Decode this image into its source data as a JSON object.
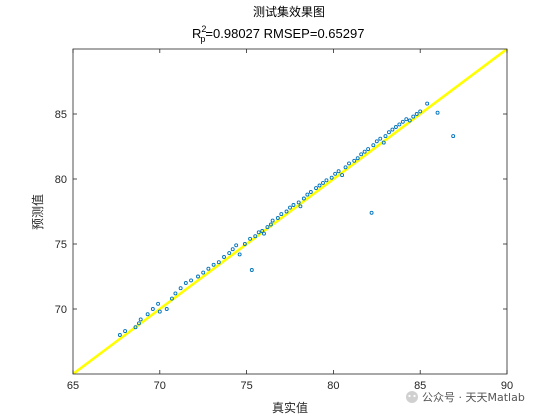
{
  "chart_data": {
    "type": "scatter",
    "title": "测试集效果图",
    "subtitle": {
      "r": "R",
      "sup": "2",
      "sub": "p",
      "rest": "=0.98027  RMSEP=0.65297"
    },
    "xlabel": "真实值",
    "ylabel": "预测值",
    "xlim": [
      65,
      90
    ],
    "ylim": [
      65,
      90
    ],
    "xticks": [
      65,
      70,
      75,
      80,
      85,
      90
    ],
    "yticks": [
      70,
      75,
      80,
      85
    ],
    "grid": false,
    "marker_color": "#0072BD",
    "fit_line": {
      "x": [
        65,
        90
      ],
      "y": [
        65,
        90
      ],
      "color": "#FFFF00"
    },
    "points": [
      [
        67.7,
        68.0
      ],
      [
        68.0,
        68.3
      ],
      [
        68.6,
        68.6
      ],
      [
        68.8,
        68.9
      ],
      [
        68.9,
        69.2
      ],
      [
        69.3,
        69.6
      ],
      [
        69.6,
        70.0
      ],
      [
        69.9,
        70.4
      ],
      [
        70.0,
        69.8
      ],
      [
        70.4,
        70.0
      ],
      [
        70.7,
        70.8
      ],
      [
        70.9,
        71.2
      ],
      [
        71.2,
        71.6
      ],
      [
        71.5,
        72.0
      ],
      [
        71.8,
        72.2
      ],
      [
        72.2,
        72.5
      ],
      [
        72.5,
        72.8
      ],
      [
        72.8,
        73.1
      ],
      [
        73.1,
        73.4
      ],
      [
        73.4,
        73.6
      ],
      [
        73.7,
        74.0
      ],
      [
        74.0,
        74.3
      ],
      [
        74.2,
        74.6
      ],
      [
        74.4,
        74.9
      ],
      [
        74.6,
        74.2
      ],
      [
        74.9,
        75.0
      ],
      [
        75.2,
        75.4
      ],
      [
        75.3,
        73.0
      ],
      [
        75.5,
        75.6
      ],
      [
        75.7,
        75.9
      ],
      [
        75.9,
        76.0
      ],
      [
        76.0,
        75.8
      ],
      [
        76.2,
        76.3
      ],
      [
        76.4,
        76.5
      ],
      [
        76.5,
        76.8
      ],
      [
        76.8,
        77.0
      ],
      [
        77.0,
        77.3
      ],
      [
        77.3,
        77.5
      ],
      [
        77.5,
        77.8
      ],
      [
        77.7,
        78.0
      ],
      [
        78.0,
        78.2
      ],
      [
        78.1,
        77.9
      ],
      [
        78.3,
        78.5
      ],
      [
        78.5,
        78.8
      ],
      [
        78.7,
        79.0
      ],
      [
        79.0,
        79.3
      ],
      [
        79.2,
        79.5
      ],
      [
        79.4,
        79.7
      ],
      [
        79.6,
        79.9
      ],
      [
        79.9,
        80.1
      ],
      [
        80.1,
        80.4
      ],
      [
        80.3,
        80.6
      ],
      [
        80.5,
        80.3
      ],
      [
        80.7,
        80.9
      ],
      [
        80.9,
        81.2
      ],
      [
        81.2,
        81.4
      ],
      [
        81.4,
        81.6
      ],
      [
        81.6,
        81.9
      ],
      [
        81.8,
        82.1
      ],
      [
        82.0,
        82.3
      ],
      [
        82.2,
        77.4
      ],
      [
        82.3,
        82.6
      ],
      [
        82.5,
        82.9
      ],
      [
        82.7,
        83.1
      ],
      [
        82.9,
        82.8
      ],
      [
        83.0,
        83.3
      ],
      [
        83.2,
        83.6
      ],
      [
        83.4,
        83.8
      ],
      [
        83.6,
        84.0
      ],
      [
        83.8,
        84.2
      ],
      [
        84.0,
        84.4
      ],
      [
        84.2,
        84.6
      ],
      [
        84.4,
        84.5
      ],
      [
        84.6,
        84.8
      ],
      [
        84.8,
        85.0
      ],
      [
        85.0,
        85.2
      ],
      [
        85.4,
        85.8
      ],
      [
        86.0,
        85.1
      ],
      [
        86.9,
        83.3
      ]
    ],
    "watermark": "公众号 · 天天Matlab"
  }
}
